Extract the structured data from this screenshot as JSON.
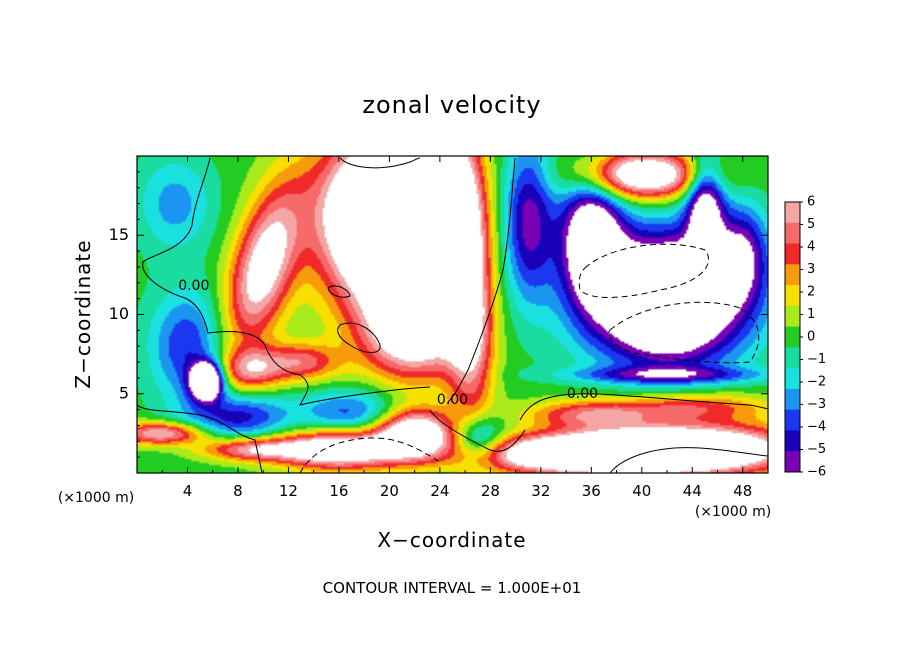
{
  "chart_data": {
    "type": "heatmap",
    "title": "zonal velocity",
    "xlabel": "X−coordinate",
    "ylabel": "Z−coordinate",
    "x_unit": "(×1000 m)",
    "z_unit": "(×1000 m)",
    "footer": "CONTOUR INTERVAL = 1.000E+01",
    "xlim": [
      0,
      50
    ],
    "ylim": [
      0,
      20
    ],
    "x_ticks": [
      "4",
      "8",
      "12",
      "16",
      "20",
      "24",
      "28",
      "32",
      "36",
      "40",
      "44",
      "48"
    ],
    "y_ticks": [
      "5",
      "10",
      "15"
    ],
    "colorbar_levels": [
      "6",
      "5",
      "4",
      "3",
      "2",
      "1",
      "0",
      "−1",
      "−2",
      "−3",
      "−4",
      "−5",
      "−6"
    ],
    "colorbar_range": [
      -6,
      6
    ],
    "contour_labels": [
      {
        "text": "0.00",
        "x": 4.5,
        "z": 11.8
      },
      {
        "text": "0.00",
        "x": 25.0,
        "z": 4.6
      },
      {
        "text": "0.00",
        "x": 35.3,
        "z": 5.0
      }
    ],
    "colors": {
      "pos6": "#f4a6a6",
      "pos5": "#f76a6a",
      "pos4": "#f02a2a",
      "pos3": "#f79a0c",
      "pos2": "#f7df00",
      "pos1": "#aaea1a",
      "zero": "#22cc22",
      "neg1": "#1adca0",
      "neg2": "#1ae0e0",
      "neg3": "#1a96f0",
      "neg4": "#1a38f0",
      "neg5": "#1a00b8",
      "neg6": "#7a00b8"
    },
    "field_features": [
      {
        "x": 10,
        "z": 13,
        "sx": 2.5,
        "sz": 5,
        "a": 8,
        "tilt": 0.3
      },
      {
        "x": 9,
        "z": 6.5,
        "sx": 2.5,
        "sz": 1.3,
        "a": 5
      },
      {
        "x": 13,
        "z": 7,
        "sx": 3,
        "sz": 1.2,
        "a": 5
      },
      {
        "x": 26,
        "z": 13,
        "sx": 1.8,
        "sz": 9,
        "a": 9,
        "tilt": -0.06
      },
      {
        "x": 20,
        "z": 16,
        "sx": 5,
        "sz": 5,
        "a": 18
      },
      {
        "x": 22,
        "z": 9,
        "sx": 4,
        "sz": 3,
        "a": 9
      },
      {
        "x": 36,
        "z": 3.7,
        "sx": 5,
        "sz": 0.9,
        "a": 5
      },
      {
        "x": 44,
        "z": 4.2,
        "sx": 6,
        "sz": 0.9,
        "a": 4.5
      },
      {
        "x": 2,
        "z": 2.5,
        "sx": 3.5,
        "sz": 0.7,
        "a": 7
      },
      {
        "x": 9,
        "z": 1.5,
        "sx": 4,
        "sz": 0.7,
        "a": 6
      },
      {
        "x": 16,
        "z": 1.5,
        "sx": 5,
        "sz": 1.2,
        "a": 10
      },
      {
        "x": 22,
        "z": 2.5,
        "sx": 3,
        "sz": 1.5,
        "a": 10
      },
      {
        "x": 35,
        "z": 1.2,
        "sx": 8,
        "sz": 1.2,
        "a": 12
      },
      {
        "x": 44,
        "z": 1.5,
        "sx": 8,
        "sz": 1.5,
        "a": 12
      },
      {
        "x": 42,
        "z": 11,
        "sx": 6,
        "sz": 4,
        "a": -14
      },
      {
        "x": 36,
        "z": 15,
        "sx": 2.5,
        "sz": 4,
        "a": -9
      },
      {
        "x": 31,
        "z": 16,
        "sx": 2,
        "sz": 5,
        "a": -6
      },
      {
        "x": 45,
        "z": 17,
        "sx": 1.5,
        "sz": 3,
        "a": -8
      },
      {
        "x": 48,
        "z": 14,
        "sx": 2,
        "sz": 3,
        "a": -5
      },
      {
        "x": 40,
        "z": 18.8,
        "sx": 5,
        "sz": 1.5,
        "a": 10
      },
      {
        "x": 4,
        "z": 8,
        "sx": 3,
        "sz": 3.5,
        "a": -4.5
      },
      {
        "x": 3,
        "z": 17,
        "sx": 3,
        "sz": 3,
        "a": -3
      },
      {
        "x": 8,
        "z": 3.5,
        "sx": 4,
        "sz": 1.5,
        "a": -5
      },
      {
        "x": 17,
        "z": 3.8,
        "sx": 4,
        "sz": 1.5,
        "a": -4
      },
      {
        "x": 27,
        "z": 2,
        "sx": 2,
        "sz": 1.5,
        "a": -6
      },
      {
        "x": 5.5,
        "z": 5.8,
        "sx": 1.2,
        "sz": 1.1,
        "a": -14
      },
      {
        "x": 42,
        "z": 6.2,
        "sx": 8,
        "sz": 0.5,
        "a": -4
      }
    ]
  }
}
